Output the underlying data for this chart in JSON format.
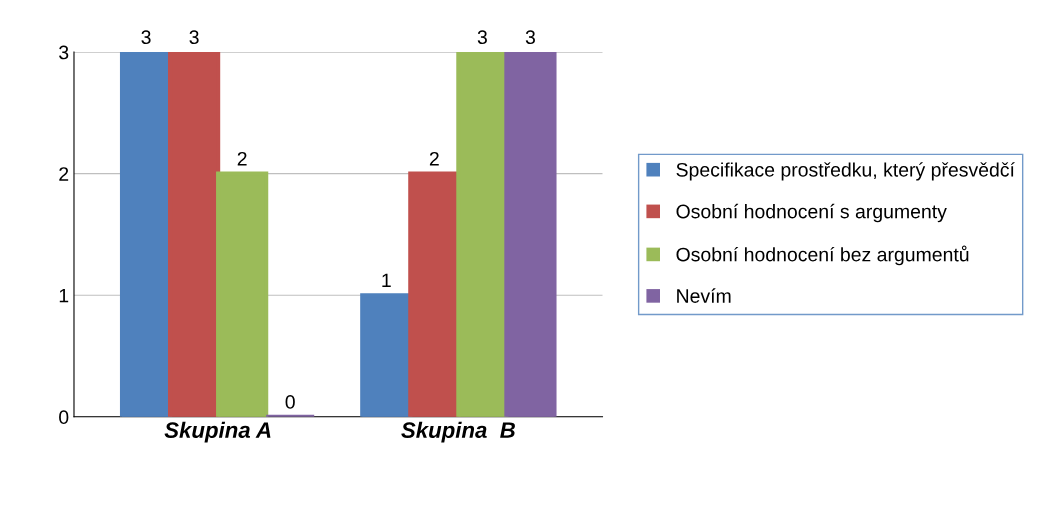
{
  "chart_data": {
    "type": "bar",
    "categories": [
      "Skupina A",
      "Skupina  B"
    ],
    "series": [
      {
        "name": "Specifikace prostředku, který přesvědčí",
        "color": "#4f81bd",
        "values": [
          3,
          1
        ]
      },
      {
        "name": "Osobní hodnocení s argumenty",
        "color": "#c0504d",
        "values": [
          3,
          2
        ]
      },
      {
        "name": "Osobní hodnocení bez argumentů",
        "color": "#9bbb59",
        "values": [
          2,
          3
        ]
      },
      {
        "name": "Nevím",
        "color": "#8064a2",
        "values": [
          0,
          3
        ]
      }
    ],
    "ylim": [
      0,
      3
    ],
    "yticks": [
      0,
      1,
      2,
      3
    ],
    "grid": "y",
    "legend": "right",
    "data_labels": true
  }
}
